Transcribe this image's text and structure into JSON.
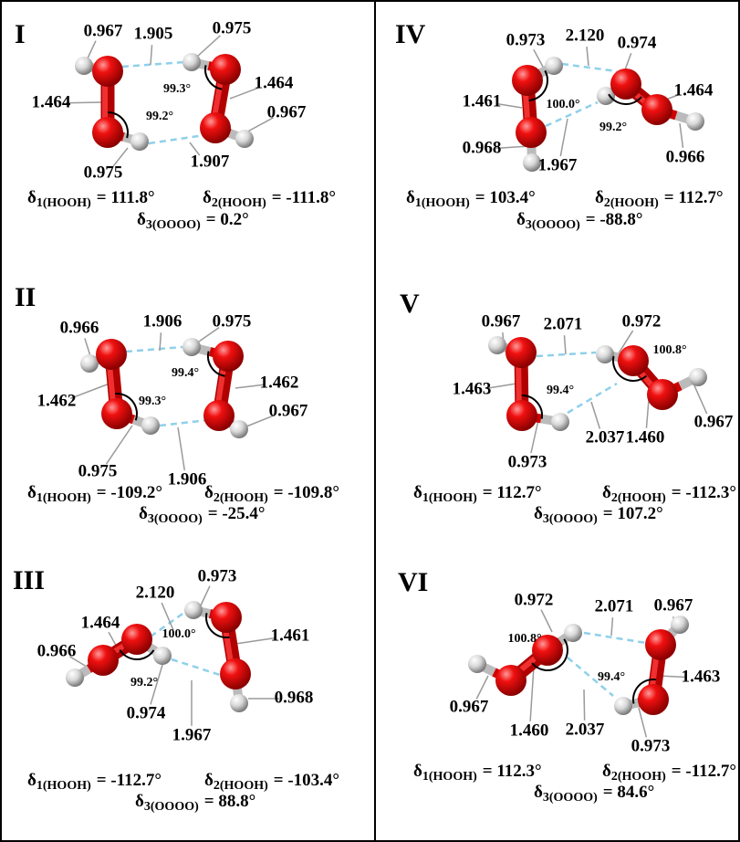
{
  "panels": [
    {
      "label": "I",
      "distances": [
        "0.967",
        "1.905",
        "0.975",
        "1.464",
        "0.967",
        "1.464",
        "0.975",
        "1.907"
      ],
      "angles": [
        "99.3°",
        "99.2°"
      ],
      "dihedrals": [
        {
          "symbol": "δ",
          "sub": "1(HOOH)",
          "value": "= 111.8°"
        },
        {
          "symbol": "δ",
          "sub": "2(HOOH)",
          "value": "= -111.8°"
        },
        {
          "symbol": "δ",
          "sub": "3(OOOO)",
          "value": "= 0.2°"
        }
      ]
    },
    {
      "label": "II",
      "distances": [
        "0.966",
        "1.906",
        "0.975",
        "1.462",
        "0.967",
        "1.462",
        "0.975",
        "1.906"
      ],
      "angles": [
        "99.4°",
        "99.3°"
      ],
      "dihedrals": [
        {
          "symbol": "δ",
          "sub": "1(HOOH)",
          "value": "= -109.2°"
        },
        {
          "symbol": "δ",
          "sub": "2(HOOH)",
          "value": "= -109.8°"
        },
        {
          "symbol": "δ",
          "sub": "3(OOOO)",
          "value": "= -25.4°"
        }
      ]
    },
    {
      "label": "III",
      "distances": [
        "1.464",
        "2.120",
        "0.973",
        "0.966",
        "1.461",
        "0.968",
        "0.974",
        "1.967"
      ],
      "angles": [
        "100.0°",
        "99.2°"
      ],
      "dihedrals": [
        {
          "symbol": "δ",
          "sub": "1(HOOH)",
          "value": "= -112.7°"
        },
        {
          "symbol": "δ",
          "sub": "2(HOOH)",
          "value": "= -103.4°"
        },
        {
          "symbol": "δ",
          "sub": "3(OOOO)",
          "value": "= 88.8°"
        }
      ]
    },
    {
      "label": "IV",
      "distances": [
        "0.973",
        "2.120",
        "0.974",
        "1.461",
        "1.464",
        "0.968",
        "1.967",
        "0.966"
      ],
      "angles": [
        "100.0°",
        "99.2°"
      ],
      "dihedrals": [
        {
          "symbol": "δ",
          "sub": "1(HOOH)",
          "value": "= 103.4°"
        },
        {
          "symbol": "δ",
          "sub": "2(HOOH)",
          "value": "= 112.7°"
        },
        {
          "symbol": "δ",
          "sub": "3(OOOO)",
          "value": "= -88.8°"
        }
      ]
    },
    {
      "label": "V",
      "distances": [
        "0.967",
        "2.071",
        "0.972",
        "1.463",
        "0.973",
        "2.037",
        "1.460",
        "0.967"
      ],
      "angles": [
        "99.4°",
        "100.8°"
      ],
      "dihedrals": [
        {
          "symbol": "δ",
          "sub": "1(HOOH)",
          "value": "= 112.7°"
        },
        {
          "symbol": "δ",
          "sub": "2(HOOH)",
          "value": "= -112.3°"
        },
        {
          "symbol": "δ",
          "sub": "3(OOOO)",
          "value": "= 107.2°"
        }
      ]
    },
    {
      "label": "VI",
      "distances": [
        "0.972",
        "2.071",
        "0.967",
        "1.463",
        "0.967",
        "1.460",
        "2.037",
        "0.973"
      ],
      "angles": [
        "100.8°",
        "99.4°"
      ],
      "dihedrals": [
        {
          "symbol": "δ",
          "sub": "1(HOOH)",
          "value": "= 112.3°"
        },
        {
          "symbol": "δ",
          "sub": "2(HOOH)",
          "value": "= -112.7°"
        },
        {
          "symbol": "δ",
          "sub": "3(OOOO)",
          "value": "= 84.6°"
        }
      ]
    }
  ]
}
